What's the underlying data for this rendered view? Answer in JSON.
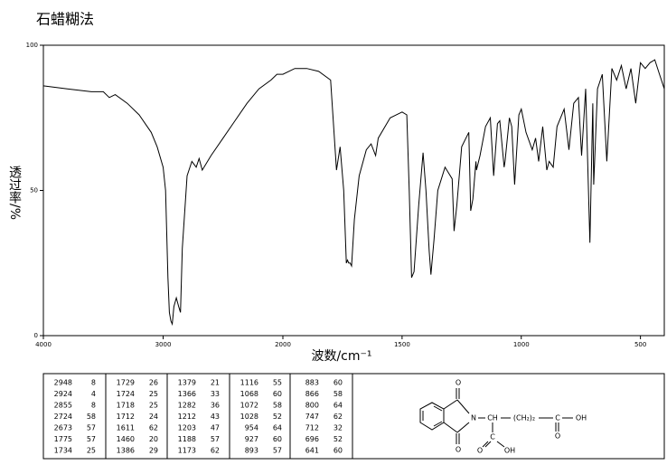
{
  "chart_data": {
    "type": "line",
    "title": "石蜡糊法",
    "x_label": "波数/cm⁻¹",
    "y_label": "透过率/%",
    "xlim": [
      4000,
      400
    ],
    "ylim": [
      0,
      100
    ],
    "x_scale_break": 2000,
    "xticks": [
      4000,
      3000,
      2000,
      1500,
      1000,
      500
    ],
    "yticks": [
      0,
      50,
      100
    ],
    "color": "#000000",
    "x": [
      4000,
      3800,
      3600,
      3500,
      3450,
      3400,
      3300,
      3200,
      3100,
      3050,
      3000,
      2980,
      2960,
      2948,
      2935,
      2924,
      2910,
      2890,
      2870,
      2855,
      2840,
      2800,
      2760,
      2724,
      2700,
      2673,
      2600,
      2500,
      2400,
      2300,
      2200,
      2100,
      2050,
      2000,
      1950,
      1900,
      1850,
      1800,
      1775,
      1760,
      1745,
      1734,
      1729,
      1724,
      1718,
      1712,
      1700,
      1680,
      1650,
      1630,
      1611,
      1600,
      1550,
      1500,
      1480,
      1470,
      1460,
      1450,
      1430,
      1412,
      1400,
      1386,
      1379,
      1366,
      1350,
      1320,
      1290,
      1282,
      1270,
      1250,
      1220,
      1212,
      1203,
      1190,
      1188,
      1173,
      1150,
      1130,
      1116,
      1100,
      1090,
      1072,
      1068,
      1050,
      1040,
      1028,
      1010,
      1000,
      980,
      954,
      940,
      927,
      910,
      893,
      883,
      866,
      850,
      820,
      800,
      780,
      760,
      747,
      730,
      712,
      700,
      696,
      680,
      660,
      641,
      620,
      600,
      580,
      560,
      540,
      520,
      500,
      480,
      460,
      440,
      420,
      400
    ],
    "values": [
      86,
      85,
      84,
      84,
      82,
      83,
      80,
      76,
      70,
      65,
      58,
      50,
      20,
      8,
      5,
      4,
      10,
      13,
      10,
      8,
      30,
      55,
      60,
      58,
      61,
      57,
      62,
      68,
      74,
      80,
      85,
      88,
      90,
      90,
      92,
      92,
      91,
      88,
      57,
      65,
      50,
      25,
      26,
      25,
      25,
      24,
      40,
      55,
      64,
      66,
      62,
      68,
      75,
      77,
      76,
      50,
      20,
      22,
      45,
      63,
      50,
      29,
      21,
      33,
      50,
      58,
      54,
      36,
      45,
      65,
      70,
      43,
      47,
      60,
      57,
      62,
      72,
      75,
      55,
      73,
      74,
      58,
      60,
      75,
      72,
      52,
      76,
      78,
      70,
      64,
      68,
      60,
      72,
      57,
      60,
      58,
      72,
      78,
      64,
      80,
      82,
      62,
      85,
      32,
      80,
      52,
      85,
      90,
      60,
      92,
      88,
      93,
      85,
      92,
      80,
      94,
      92,
      94,
      95,
      90,
      85
    ]
  },
  "peak_table": [
    [
      [
        2948,
        8
      ],
      [
        2924,
        4
      ],
      [
        2855,
        8
      ],
      [
        2724,
        58
      ],
      [
        2673,
        57
      ],
      [
        1775,
        57
      ],
      [
        1734,
        25
      ]
    ],
    [
      [
        1729,
        26
      ],
      [
        1724,
        25
      ],
      [
        1718,
        25
      ],
      [
        1712,
        24
      ],
      [
        1611,
        62
      ],
      [
        1460,
        20
      ],
      [
        1386,
        29
      ]
    ],
    [
      [
        1379,
        21
      ],
      [
        1366,
        33
      ],
      [
        1282,
        36
      ],
      [
        1212,
        43
      ],
      [
        1203,
        47
      ],
      [
        1188,
        57
      ],
      [
        1173,
        62
      ]
    ],
    [
      [
        1116,
        55
      ],
      [
        1068,
        60
      ],
      [
        1072,
        58
      ],
      [
        1028,
        52
      ],
      [
        954,
        64
      ],
      [
        927,
        60
      ],
      [
        893,
        57
      ]
    ],
    [
      [
        883,
        60
      ],
      [
        866,
        58
      ],
      [
        800,
        64
      ],
      [
        747,
        62
      ],
      [
        712,
        32
      ],
      [
        696,
        52
      ],
      [
        641,
        60
      ]
    ]
  ],
  "structure": {
    "o_top": "O",
    "n": "N",
    "o_bottom": "O",
    "ch": "CH",
    "chain": "(CH₂)₂",
    "c1": "C",
    "oh1": "OH",
    "o1": "O",
    "c2": "C",
    "oh2": "OH",
    "o2": "O"
  }
}
